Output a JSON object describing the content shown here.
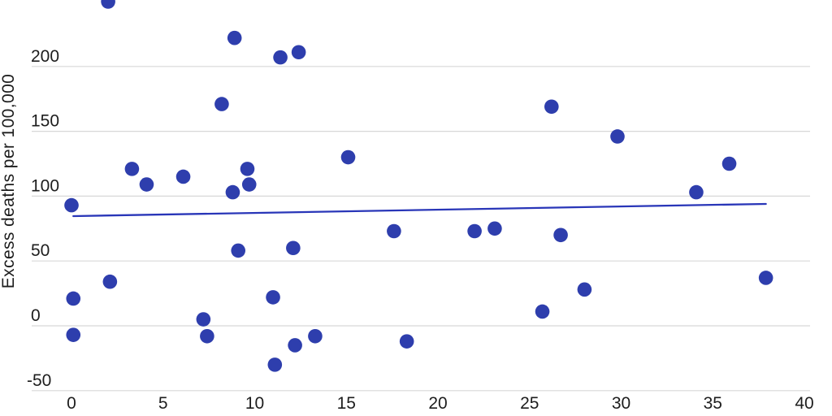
{
  "chart_data": {
    "type": "scatter",
    "title": "",
    "xlabel": "",
    "ylabel": "Excess deaths per 100,000",
    "x_ticks": [
      0,
      5,
      10,
      15,
      20,
      25,
      30,
      35,
      40
    ],
    "y_ticks": [
      -50,
      0,
      50,
      100,
      150,
      200
    ],
    "xlim": [
      -2.2,
      40.3
    ],
    "ylim": [
      -50,
      251
    ],
    "grid": true,
    "legend": "none",
    "points": [
      [
        0,
        93
      ],
      [
        0.1,
        21
      ],
      [
        0.1,
        -7
      ],
      [
        2,
        250
      ],
      [
        2.1,
        34
      ],
      [
        3.3,
        121
      ],
      [
        4.1,
        109
      ],
      [
        6.1,
        115
      ],
      [
        7.2,
        5
      ],
      [
        7.4,
        -8
      ],
      [
        8.2,
        171
      ],
      [
        8.8,
        103
      ],
      [
        8.9,
        222
      ],
      [
        9.1,
        58
      ],
      [
        9.6,
        121
      ],
      [
        9.7,
        109
      ],
      [
        11,
        22
      ],
      [
        11.1,
        -30
      ],
      [
        11.4,
        207
      ],
      [
        12.1,
        60
      ],
      [
        12.2,
        -15
      ],
      [
        12.4,
        211
      ],
      [
        13.3,
        -8
      ],
      [
        15.1,
        130
      ],
      [
        17.6,
        73
      ],
      [
        18.3,
        -12
      ],
      [
        22,
        73
      ],
      [
        23.1,
        75
      ],
      [
        25.7,
        11
      ],
      [
        26.2,
        169
      ],
      [
        26.7,
        70
      ],
      [
        28,
        28
      ],
      [
        29.8,
        146
      ],
      [
        34.1,
        103
      ],
      [
        35.9,
        125
      ],
      [
        37.9,
        37
      ]
    ],
    "trend_line": {
      "x1": 0.1,
      "y1": 84.6,
      "x2": 37.9,
      "y2": 94
    },
    "colors": {
      "point": "#2e3ead",
      "trend": "#2936b8",
      "grid": "#d8d8d8",
      "text": "#1d1d1d",
      "background": "#ffffff"
    }
  }
}
